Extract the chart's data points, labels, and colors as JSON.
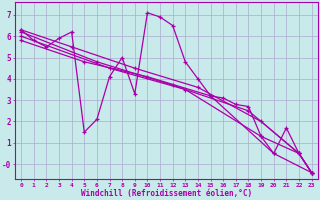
{
  "bg_color": "#c8eaea",
  "line_color": "#aa00aa",
  "grid_color": "#aaaacc",
  "tick_color": "#aa00aa",
  "xlabel": "Windchill (Refroidissement éolien,°C)",
  "xlim": [
    -0.5,
    23.5
  ],
  "ylim": [
    -0.7,
    7.6
  ],
  "xticks": [
    0,
    1,
    2,
    3,
    4,
    5,
    6,
    7,
    8,
    9,
    10,
    11,
    12,
    13,
    14,
    15,
    16,
    17,
    18,
    19,
    20,
    21,
    22,
    23
  ],
  "yticks": [
    0,
    1,
    2,
    3,
    4,
    5,
    6,
    7
  ],
  "ytick_labels": [
    "-0",
    "1",
    "2",
    "3",
    "4",
    "5",
    "6",
    "7"
  ],
  "line_main": [
    [
      0,
      6.3
    ],
    [
      1,
      5.8
    ],
    [
      2,
      5.5
    ],
    [
      3,
      5.9
    ],
    [
      4,
      6.2
    ],
    [
      5,
      1.5
    ],
    [
      6,
      2.1
    ],
    [
      7,
      4.1
    ],
    [
      8,
      5.0
    ],
    [
      9,
      3.3
    ],
    [
      10,
      7.1
    ],
    [
      11,
      6.9
    ],
    [
      12,
      6.5
    ],
    [
      13,
      4.8
    ],
    [
      14,
      4.0
    ],
    [
      15,
      3.2
    ],
    [
      16,
      3.1
    ],
    [
      17,
      2.8
    ],
    [
      18,
      2.7
    ],
    [
      19,
      1.3
    ],
    [
      20,
      0.5
    ],
    [
      21,
      1.7
    ],
    [
      22,
      0.5
    ],
    [
      23,
      -0.4
    ]
  ],
  "line2": [
    [
      0,
      6.3
    ],
    [
      4,
      5.5
    ],
    [
      9,
      4.5
    ],
    [
      14,
      3.6
    ],
    [
      19,
      2.0
    ],
    [
      22,
      0.5
    ],
    [
      23,
      -0.4
    ]
  ],
  "line3": [
    [
      0,
      5.8
    ],
    [
      5,
      4.8
    ],
    [
      10,
      4.1
    ],
    [
      15,
      3.2
    ],
    [
      20,
      0.5
    ],
    [
      23,
      -0.4
    ]
  ],
  "line4": [
    [
      0,
      6.2
    ],
    [
      6,
      4.8
    ],
    [
      12,
      3.7
    ],
    [
      18,
      2.5
    ],
    [
      22,
      0.5
    ],
    [
      23,
      -0.4
    ]
  ],
  "line5": [
    [
      0,
      6.0
    ],
    [
      7,
      4.5
    ],
    [
      13,
      3.5
    ],
    [
      19,
      1.3
    ],
    [
      22,
      0.5
    ],
    [
      23,
      -0.4
    ]
  ]
}
